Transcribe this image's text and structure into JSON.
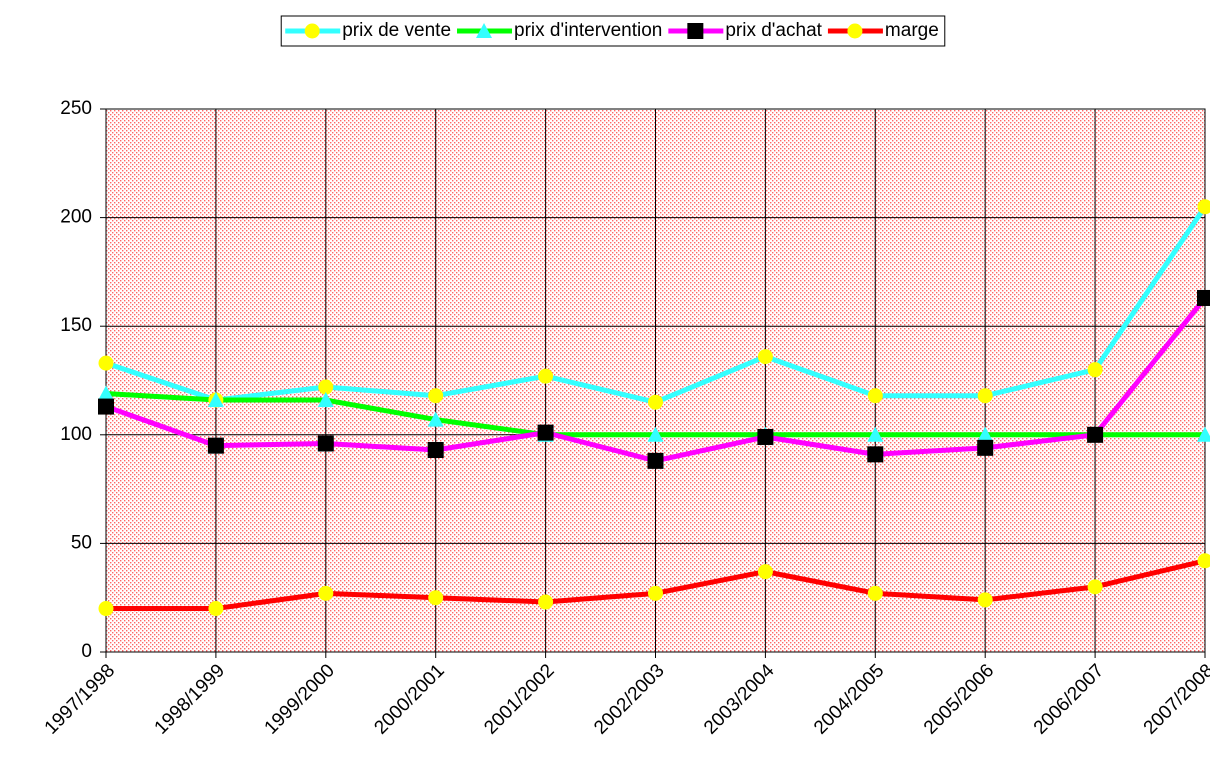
{
  "chart_data": {
    "type": "line",
    "categories": [
      "1997/1998",
      "1998/1999",
      "1999/2000",
      "2000/2001",
      "2001/2002",
      "2002/2003",
      "2003/2004",
      "2004/2005",
      "2005/2006",
      "2006/2007",
      "2007/2008"
    ],
    "series": [
      {
        "name": "prix de vente",
        "color": "#33ffff",
        "marker": "circle",
        "marker_color": "#ffff00",
        "values": [
          133,
          116,
          122,
          118,
          127,
          115,
          136,
          118,
          118,
          130,
          205
        ]
      },
      {
        "name": "prix d'intervention",
        "color": "#00ff00",
        "marker": "triangle",
        "marker_color": "#33ffff",
        "values": [
          119,
          116,
          116,
          107,
          100,
          100,
          100,
          100,
          100,
          100,
          100
        ]
      },
      {
        "name": "prix d'achat",
        "color": "#ff00ff",
        "marker": "square",
        "marker_color": "#000000",
        "values": [
          113,
          95,
          96,
          93,
          101,
          88,
          99,
          91,
          94,
          100,
          163
        ]
      },
      {
        "name": "marge",
        "color": "#ff0000",
        "marker": "circle",
        "marker_color": "#ffff00",
        "values": [
          20,
          20,
          27,
          25,
          23,
          27,
          37,
          27,
          24,
          30,
          42
        ]
      }
    ],
    "ylim": [
      0,
      250
    ],
    "yticks": [
      0,
      50,
      100,
      150,
      200,
      250
    ],
    "grid": true,
    "legend": "top"
  }
}
